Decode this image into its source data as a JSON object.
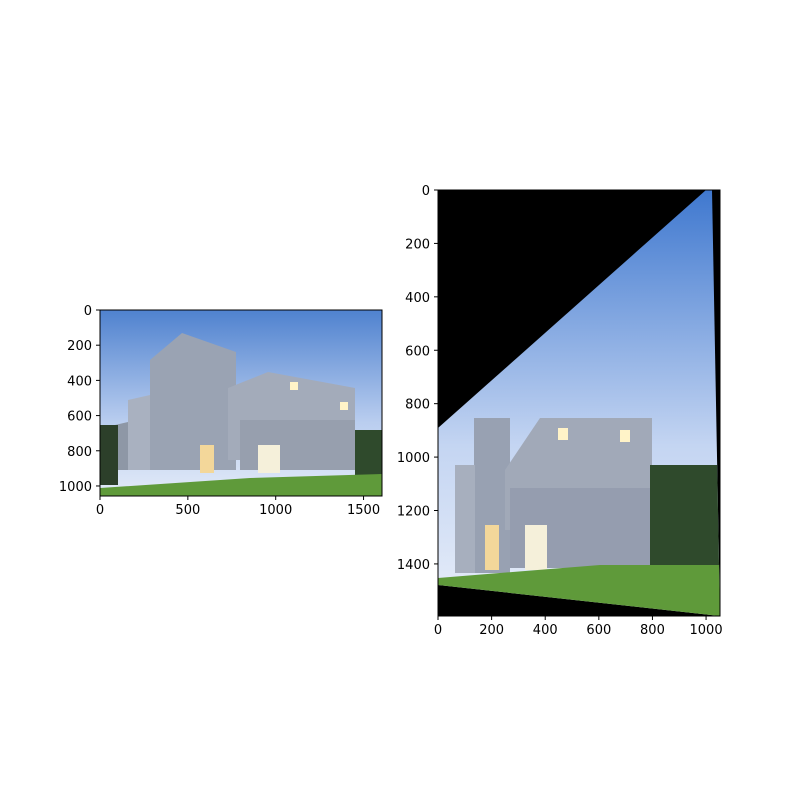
{
  "chart_data": [
    {
      "type": "image",
      "xlim": [
        0,
        1605
      ],
      "ylim": [
        1057,
        0
      ],
      "xticks": [
        0,
        500,
        1000,
        1500
      ],
      "yticks": [
        0,
        200,
        400,
        600,
        800,
        1000
      ]
    },
    {
      "type": "image",
      "xlim": [
        0,
        1052
      ],
      "ylim": [
        1595,
        0
      ],
      "xticks": [
        0,
        200,
        400,
        600,
        800,
        1000
      ],
      "yticks": [
        0,
        200,
        400,
        600,
        800,
        1000,
        1200,
        1400
      ]
    }
  ]
}
